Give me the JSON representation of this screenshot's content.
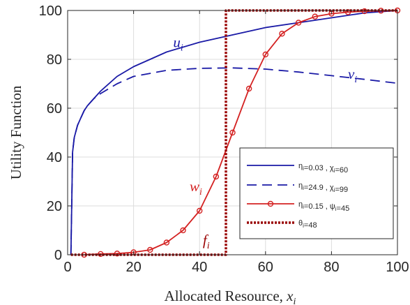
{
  "chart_data": {
    "type": "line",
    "xlabel": "Allocated Resource,",
    "xlabel_var": "x",
    "xlabel_sub": "i",
    "ylabel": "Utility Function",
    "xlim": [
      0,
      100
    ],
    "ylim": [
      0,
      100
    ],
    "xticks": [
      0,
      20,
      40,
      60,
      80,
      100
    ],
    "yticks": [
      0,
      20,
      40,
      60,
      80,
      100
    ],
    "grid": true,
    "legend_position": "bottom-right",
    "series": [
      {
        "legend": "η_i=0.03 , χ_i=60",
        "annotation": {
          "var": "u",
          "sub": "i",
          "x": 32,
          "y": 85
        },
        "color": "#1a1aa6",
        "style": "solid",
        "marker": "none",
        "x": [
          1,
          1.5,
          2,
          3,
          4,
          5,
          6,
          8,
          10,
          15,
          20,
          25,
          30,
          40,
          50,
          60,
          70,
          80,
          90,
          100
        ],
        "y": [
          0,
          42,
          48,
          53,
          56,
          59,
          61,
          64,
          67,
          73,
          77,
          80,
          83,
          87,
          90,
          93,
          95,
          97,
          99,
          100
        ]
      },
      {
        "legend": "η_i=24.9 , χ_i=99",
        "annotation": {
          "var": "v",
          "sub": "i",
          "x": 85,
          "y": 72
        },
        "color": "#1a1aa6",
        "style": "dashed",
        "marker": "none",
        "x": [
          1,
          1.5,
          2,
          3,
          4,
          5,
          6,
          8,
          10,
          15,
          20,
          30,
          40,
          50,
          60,
          70,
          80,
          90,
          100
        ],
        "y": [
          0,
          42,
          48,
          53,
          56,
          59,
          61,
          64,
          66,
          70,
          73,
          75.5,
          76.3,
          76.5,
          76,
          74.8,
          73.3,
          71.8,
          70.2
        ]
      },
      {
        "legend": "η_i=0.15 , ψ_i=45",
        "annotation": {
          "var": "w",
          "sub": "i",
          "x": 37,
          "y": 26
        },
        "color": "#d42222",
        "style": "solid",
        "marker": "circle",
        "x": [
          5,
          10,
          15,
          20,
          25,
          30,
          35,
          40,
          45,
          50,
          55,
          60,
          65,
          70,
          75,
          80,
          85,
          90,
          95,
          100
        ],
        "y": [
          0,
          0.3,
          0.5,
          1,
          2,
          5,
          10,
          18,
          32,
          50,
          68,
          82,
          90.5,
          95,
          97.5,
          98.7,
          99.3,
          99.7,
          99.9,
          100
        ]
      },
      {
        "legend": "θ_i=48",
        "annotation": {
          "var": "f",
          "sub": "i",
          "x": 41,
          "y": 4
        },
        "color": "#990000",
        "style": "dotted",
        "marker": "none",
        "x": [
          1,
          48,
          48,
          100
        ],
        "y": [
          0,
          0,
          100,
          100
        ]
      }
    ]
  }
}
